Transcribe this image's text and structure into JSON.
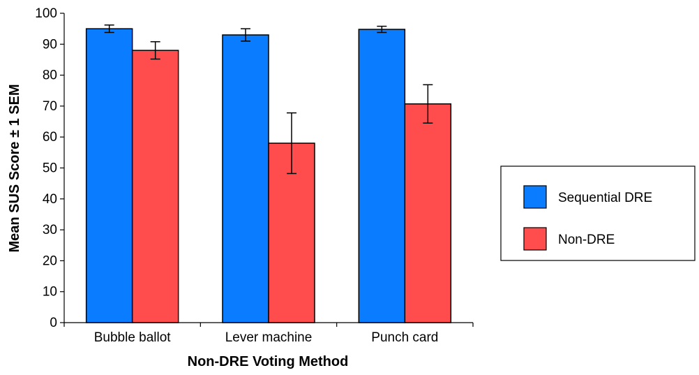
{
  "chart_data": {
    "type": "bar",
    "title": "",
    "xlabel": "Non-DRE Voting Method",
    "ylabel": "Mean SUS Score ± 1 SEM",
    "ylim": [
      0,
      100
    ],
    "yticks": [
      0,
      10,
      20,
      30,
      40,
      50,
      60,
      70,
      80,
      90,
      100
    ],
    "categories": [
      "Bubble ballot",
      "Lever machine",
      "Punch card"
    ],
    "series": [
      {
        "name": "Sequential DRE",
        "color": "#0a7cff",
        "values": [
          95.0,
          93.0,
          94.8
        ],
        "sem": [
          1.2,
          2.0,
          1.0
        ]
      },
      {
        "name": "Non-DRE",
        "color": "#ff4d4d",
        "values": [
          88.0,
          58.0,
          70.7
        ],
        "sem": [
          2.8,
          9.8,
          6.2
        ]
      }
    ],
    "grid": false,
    "legend_position": "right"
  }
}
